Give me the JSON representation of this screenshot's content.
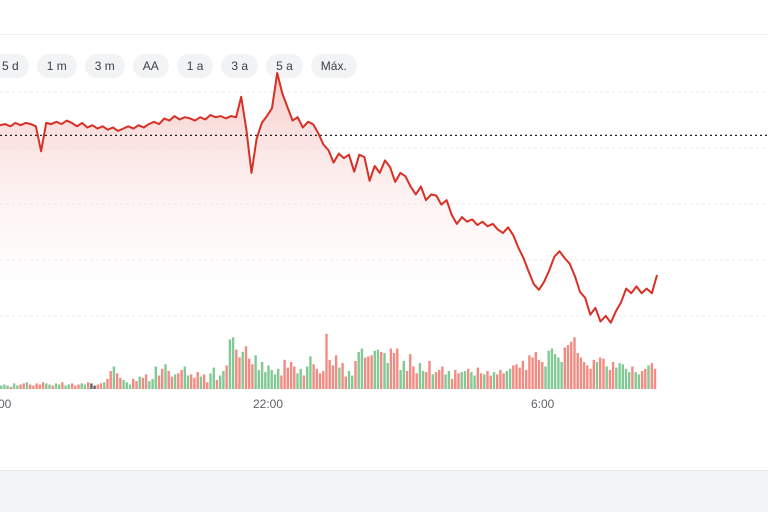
{
  "range_selector": {
    "buttons": [
      "5 d",
      "1 m",
      "3 m",
      "AA",
      "1 a",
      "3 a",
      "5 a",
      "Máx."
    ]
  },
  "colors": {
    "line": "#d93025",
    "area_top": "#f5c6c3",
    "reference_line": "#202124",
    "volume_up": "#81c995",
    "volume_down": "#f28b82",
    "volume_neutral": "#5f6368",
    "grid": "#e8eaed"
  },
  "chart_data": {
    "type": "line",
    "title": "",
    "xlabel": "",
    "ylabel": "",
    "x_ticks": [
      "00",
      "22:00",
      "6:00"
    ],
    "grid": true,
    "reference_line": "previous close (dotted)",
    "price_ylim": [
      0,
      100
    ],
    "price_series": {
      "name": "",
      "values": [
        84.5,
        85.0,
        84.0,
        85.5,
        84.5,
        85.5,
        85.0,
        84.0,
        73.0,
        85.5,
        85.0,
        86.0,
        85.0,
        86.5,
        85.5,
        84.0,
        85.5,
        83.5,
        84.5,
        83.0,
        84.0,
        82.5,
        83.5,
        82.0,
        83.0,
        84.0,
        83.0,
        84.5,
        83.5,
        85.0,
        86.0,
        85.0,
        87.5,
        86.5,
        88.5,
        87.0,
        88.0,
        87.5,
        86.5,
        88.0,
        87.0,
        89.0,
        88.0,
        88.5,
        87.5,
        88.5,
        88.0,
        97.0,
        82.5,
        63.5,
        78.5,
        85.5,
        88.5,
        92.0,
        107.5,
        98.5,
        92.5,
        86.5,
        88.0,
        83.5,
        86.0,
        85.0,
        81.0,
        76.0,
        73.5,
        68.0,
        72.0,
        70.0,
        71.5,
        64.0,
        71.5,
        70.5,
        60.0,
        66.5,
        63.5,
        69.0,
        66.0,
        59.5,
        63.5,
        62.0,
        57.5,
        54.0,
        57.5,
        51.5,
        54.0,
        53.5,
        49.5,
        51.5,
        45.0,
        41.0,
        44.0,
        42.0,
        43.0,
        40.5,
        42.0,
        40.0,
        41.0,
        38.5,
        37.0,
        39.5,
        36.0,
        30.5,
        26.0,
        20.0,
        14.5,
        12.0,
        15.5,
        20.5,
        26.5,
        29.0,
        26.0,
        23.5,
        18.0,
        11.0,
        8.5,
        1.0,
        4.0,
        -2.0,
        0.5,
        -2.5,
        2.5,
        6.5,
        12.5,
        10.5,
        13.5,
        10.5,
        12.5,
        10.5,
        18.5
      ],
      "color": "#d93025"
    },
    "previous_close": 80.0,
    "volume_ylim": [
      0,
      48
    ],
    "volume_series": {
      "name": "",
      "values": [
        3,
        4,
        3,
        2,
        5,
        3,
        4,
        5,
        6,
        4,
        3,
        5,
        4,
        6,
        5,
        4,
        3,
        5,
        4,
        6,
        3,
        4,
        5,
        3,
        4,
        5,
        4,
        6,
        5,
        3,
        4,
        5,
        6,
        9,
        16,
        20,
        14,
        10,
        8,
        6,
        4,
        9,
        7,
        11,
        10,
        13,
        7,
        9,
        20,
        12,
        18,
        22,
        16,
        11,
        13,
        14,
        17,
        20,
        12,
        13,
        10,
        15,
        11,
        13,
        6,
        14,
        19,
        8,
        12,
        16,
        21,
        44,
        46,
        35,
        28,
        33,
        38,
        27,
        22,
        30,
        17,
        24,
        15,
        21,
        17,
        13,
        18,
        12,
        26,
        19,
        24,
        20,
        14,
        18,
        12,
        20,
        29,
        22,
        18,
        14,
        16,
        49,
        26,
        21,
        30,
        19,
        23,
        11,
        16,
        12,
        25,
        33,
        36,
        28,
        29,
        30,
        34,
        35,
        33,
        32,
        23,
        36,
        32,
        36,
        17,
        25,
        16,
        31,
        20,
        14,
        23,
        16,
        15,
        25,
        13,
        15,
        17,
        20,
        13,
        16,
        9,
        17,
        14,
        15,
        16,
        18,
        15,
        12,
        19,
        14,
        13,
        16,
        12,
        15,
        13,
        17,
        14,
        16,
        18,
        21,
        22,
        19,
        25,
        17,
        30,
        28,
        33,
        26,
        24,
        20,
        34,
        36,
        31,
        28,
        24,
        37,
        39,
        42,
        46,
        32,
        28,
        24,
        21,
        18,
        26,
        24,
        28,
        27,
        20,
        17,
        24,
        19,
        23,
        22,
        18,
        15,
        20,
        15,
        13,
        16,
        18,
        21,
        23,
        18
      ],
      "direction": "mixed"
    }
  }
}
